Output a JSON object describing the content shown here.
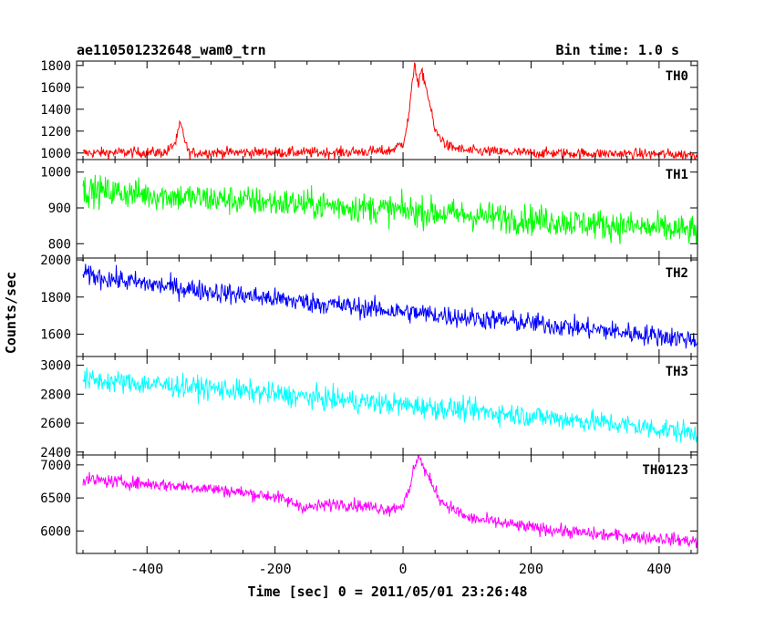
{
  "header": {
    "left_title": "ae110501232648_wam0_trn",
    "right_title": "Bin time: 1.0 s"
  },
  "chart_data": {
    "type": "line",
    "x_range": [
      -510,
      460
    ],
    "x_ticks": [
      -400,
      -200,
      0,
      200,
      400
    ],
    "x_label": "Time [sec] 0 = 2011/05/01 23:26:48",
    "y_label": "Counts/sec",
    "panels": [
      {
        "name": "TH0",
        "color": "#ff0000",
        "ylim": [
          940,
          1840
        ],
        "y_ticks": [
          1000,
          1200,
          1400,
          1600,
          1800
        ],
        "x": [
          -500,
          -440,
          -370,
          -355,
          -348,
          -335,
          -300,
          -200,
          -100,
          -20,
          0,
          8,
          14,
          18,
          24,
          28,
          32,
          40,
          50,
          70,
          100,
          200,
          300,
          400,
          460
        ],
        "y": [
          1000,
          1005,
          1005,
          1100,
          1270,
          1000,
          1005,
          1005,
          1005,
          1020,
          1090,
          1300,
          1600,
          1840,
          1600,
          1740,
          1700,
          1500,
          1200,
          1060,
          1020,
          1000,
          995,
          990,
          985
        ],
        "noise": 35
      },
      {
        "name": "TH1",
        "color": "#00ff00",
        "ylim": [
          760,
          1035
        ],
        "y_ticks": [
          800,
          900,
          1000
        ],
        "x": [
          -500,
          -300,
          -100,
          100,
          300,
          460
        ],
        "y": [
          950,
          925,
          905,
          880,
          855,
          835
        ],
        "noise": 30
      },
      {
        "name": "TH2",
        "color": "#0000ff",
        "ylim": [
          1480,
          2010
        ],
        "y_ticks": [
          1600,
          1800,
          2000
        ],
        "x": [
          -500,
          -400,
          -200,
          0,
          200,
          460
        ],
        "y": [
          1920,
          1870,
          1790,
          1720,
          1660,
          1570
        ],
        "noise": 40
      },
      {
        "name": "TH3",
        "color": "#00ffff",
        "ylim": [
          2380,
          3060
        ],
        "y_ticks": [
          2400,
          2600,
          2800,
          3000
        ],
        "x": [
          -500,
          -300,
          -100,
          100,
          300,
          460
        ],
        "y": [
          2900,
          2840,
          2760,
          2690,
          2610,
          2530
        ],
        "noise": 55
      },
      {
        "name": "TH0123",
        "color": "#ff00ff",
        "ylim": [
          5660,
          7150
        ],
        "y_ticks": [
          6000,
          6500,
          7000
        ],
        "x": [
          -500,
          -350,
          -300,
          -200,
          -150,
          -100,
          -20,
          0,
          10,
          18,
          24,
          30,
          40,
          60,
          100,
          200,
          300,
          400,
          460
        ],
        "y": [
          6780,
          6680,
          6640,
          6520,
          6350,
          6420,
          6330,
          6400,
          6600,
          7000,
          7150,
          7000,
          6800,
          6450,
          6200,
          6050,
          5950,
          5890,
          5840
        ],
        "noise": 70
      }
    ]
  }
}
